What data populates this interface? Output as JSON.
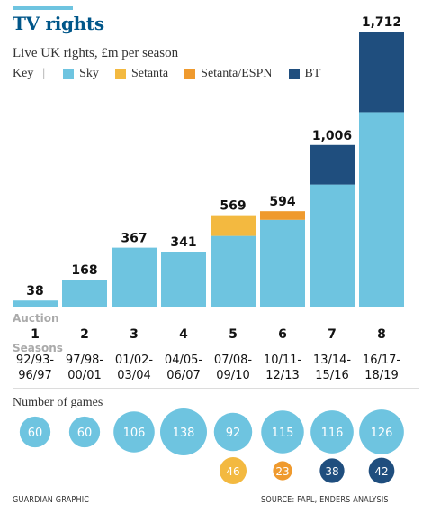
{
  "header": {
    "title": "TV rights",
    "subtitle": "Live UK rights, £m per season"
  },
  "key": {
    "label": "Key",
    "separator": "|",
    "items": [
      {
        "label": "Sky",
        "color": "#6ec4e0"
      },
      {
        "label": "Setanta",
        "color": "#f3b940"
      },
      {
        "label": "Setanta/ESPN",
        "color": "#ef9a2e"
      },
      {
        "label": "BT",
        "color": "#1f4e7e"
      }
    ]
  },
  "labels": {
    "auction": "Auction",
    "seasons": "Seasons",
    "games": "Number of games"
  },
  "footer": {
    "left": "GUARDIAN GRAPHIC",
    "right": "SOURCE: FAPL, ENDERS ANALYSIS"
  },
  "chart_data": {
    "type": "bar",
    "stacked": true,
    "categories": [
      "1",
      "2",
      "3",
      "4",
      "5",
      "6",
      "7",
      "8"
    ],
    "season_labels": [
      [
        "92/93-",
        "96/97"
      ],
      [
        "97/98-",
        "00/01"
      ],
      [
        "01/02-",
        "03/04"
      ],
      [
        "04/05-",
        "06/07"
      ],
      [
        "07/08-",
        "09/10"
      ],
      [
        "10/11-",
        "12/13"
      ],
      [
        "13/14-",
        "15/16"
      ],
      [
        "16/17-",
        "18/19"
      ]
    ],
    "totals": [
      38,
      168,
      367,
      341,
      569,
      594,
      1006,
      1712
    ],
    "total_labels": [
      "38",
      "168",
      "367",
      "341",
      "569",
      "594",
      "1,006",
      "1,712"
    ],
    "series": [
      {
        "name": "Sky",
        "color": "#6ec4e0",
        "values": [
          38,
          168,
          367,
          341,
          440,
          540,
          760,
          1210
        ]
      },
      {
        "name": "Setanta",
        "color": "#f3b940",
        "values": [
          0,
          0,
          0,
          0,
          129,
          0,
          0,
          0
        ]
      },
      {
        "name": "Setanta/ESPN",
        "color": "#ef9a2e",
        "values": [
          0,
          0,
          0,
          0,
          0,
          54,
          0,
          0
        ]
      },
      {
        "name": "BT",
        "color": "#1f4e7e",
        "values": [
          0,
          0,
          0,
          0,
          0,
          0,
          246,
          502
        ]
      }
    ],
    "ylim": [
      0,
      1712
    ],
    "games": {
      "sky": [
        60,
        60,
        106,
        138,
        92,
        115,
        116,
        126
      ],
      "other": [
        null,
        null,
        null,
        null,
        46,
        23,
        38,
        42
      ],
      "other_colors": [
        null,
        null,
        null,
        null,
        "#f3b940",
        "#ef9a2e",
        "#1f4e7e",
        "#1f4e7e"
      ]
    }
  }
}
